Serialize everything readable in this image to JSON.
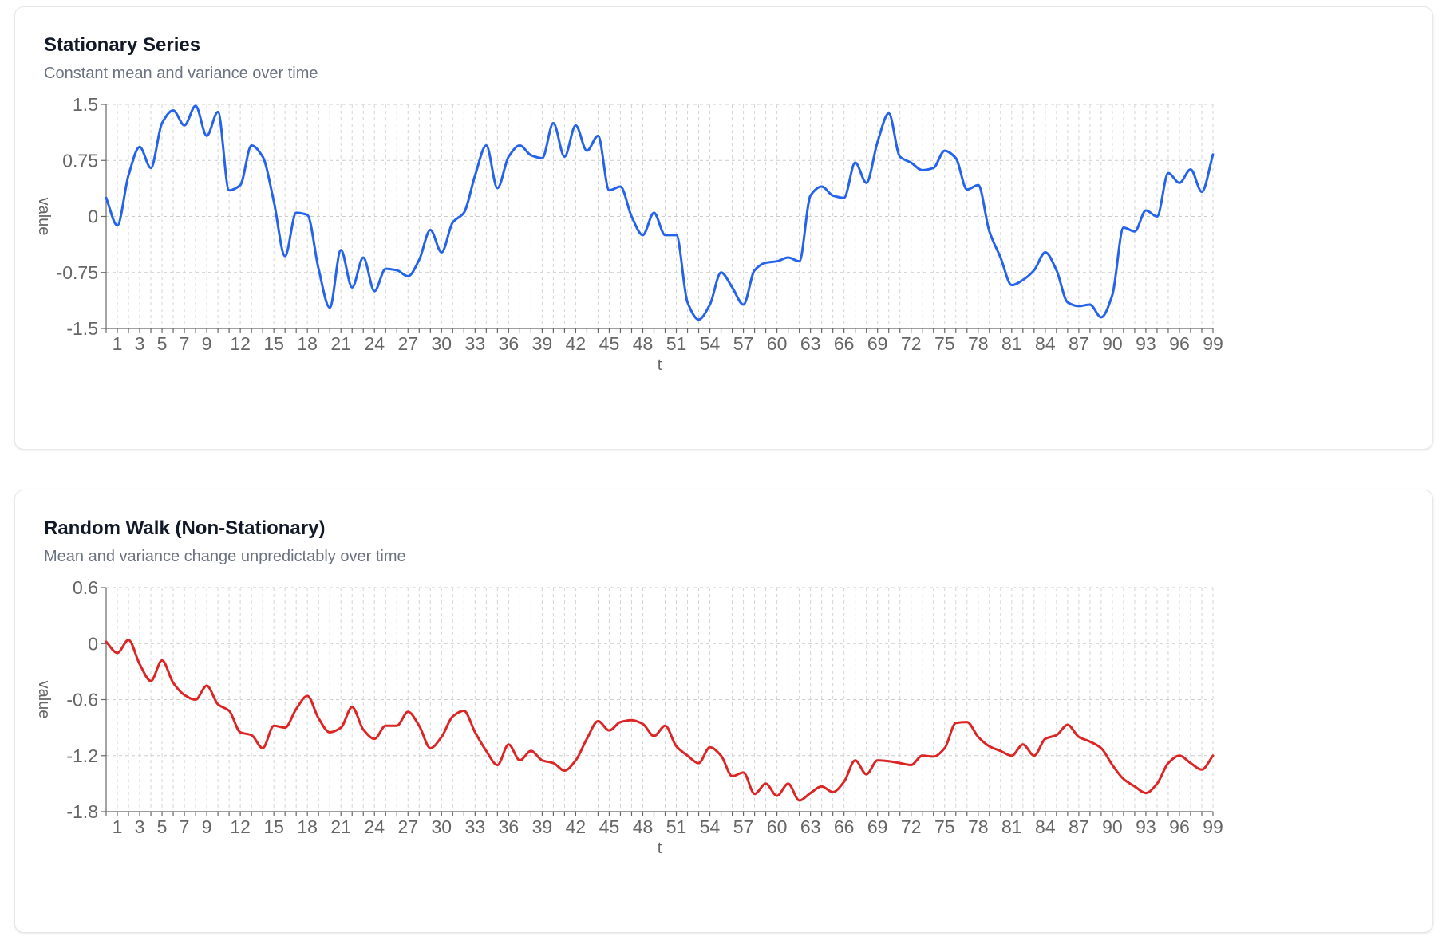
{
  "charts": [
    {
      "title": "Stationary Series",
      "subtitle": "Constant mean and variance over time",
      "chart_data": {
        "type": "line",
        "title": "Stationary Series",
        "subtitle": "Constant mean and variance over time",
        "xlabel": "t",
        "ylabel": "value",
        "ylim": [
          -1.5,
          1.5
        ],
        "yticks": [
          1.5,
          0.75,
          0,
          -0.75,
          -1.5
        ],
        "ytick_labels": [
          "1.5",
          "0.75",
          "0",
          "-0.75",
          "-1.5"
        ],
        "xtick_labels": [
          1,
          3,
          5,
          7,
          9,
          12,
          15,
          18,
          21,
          24,
          27,
          30,
          33,
          36,
          39,
          42,
          45,
          48,
          51,
          54,
          57,
          60,
          63,
          66,
          69,
          72,
          75,
          78,
          81,
          84,
          87,
          90,
          93,
          96,
          99
        ],
        "grid": true,
        "color": "#2563eb",
        "x": [
          0,
          1,
          2,
          3,
          4,
          5,
          6,
          7,
          8,
          9,
          10,
          11,
          12,
          13,
          14,
          15,
          16,
          17,
          18,
          19,
          20,
          21,
          22,
          23,
          24,
          25,
          26,
          27,
          28,
          29,
          30,
          31,
          32,
          33,
          34,
          35,
          36,
          37,
          38,
          39,
          40,
          41,
          42,
          43,
          44,
          45,
          46,
          47,
          48,
          49,
          50,
          51,
          52,
          53,
          54,
          55,
          56,
          57,
          58,
          59,
          60,
          61,
          62,
          63,
          64,
          65,
          66,
          67,
          68,
          69,
          70,
          71,
          72,
          73,
          74,
          75,
          76,
          77,
          78,
          79,
          80,
          81,
          82,
          83,
          84,
          85,
          86,
          87,
          88,
          89,
          90,
          91,
          92,
          93,
          94,
          95,
          96,
          97,
          98,
          99
        ],
        "series": [
          {
            "values": [
              0.25,
              -0.12,
              0.55,
              0.93,
              0.65,
              1.25,
              1.42,
              1.22,
              1.48,
              1.08,
              1.4,
              0.35,
              0.42,
              0.95,
              0.8,
              0.2,
              -0.53,
              0.05,
              0.02,
              -0.7,
              -1.22,
              -0.45,
              -0.95,
              -0.55,
              -1.0,
              -0.7,
              -0.72,
              -0.8,
              -0.58,
              -0.18,
              -0.48,
              -0.08,
              0.05,
              0.55,
              0.95,
              0.38,
              0.8,
              0.95,
              0.82,
              0.78,
              1.25,
              0.8,
              1.22,
              0.88,
              1.08,
              0.35,
              0.4,
              0.0,
              -0.25,
              0.05,
              -0.25,
              -0.25,
              -1.15,
              -1.38,
              -1.18,
              -0.75,
              -0.95,
              -1.18,
              -0.72,
              -0.62,
              -0.6,
              -0.55,
              -0.6,
              0.28,
              0.4,
              0.28,
              0.25,
              0.72,
              0.45,
              1.0,
              1.38,
              0.8,
              0.72,
              0.62,
              0.65,
              0.88,
              0.78,
              0.36,
              0.42,
              -0.2,
              -0.55,
              -0.92,
              -0.85,
              -0.72,
              -0.48,
              -0.72,
              -1.15,
              -1.2,
              -1.18,
              -1.35,
              -1.05,
              -0.15,
              -0.2,
              0.08,
              0.0,
              0.58,
              0.45,
              0.63,
              0.33,
              0.83
            ]
          }
        ]
      }
    },
    {
      "title": "Random Walk (Non-Stationary)",
      "subtitle": "Mean and variance change unpredictably over time",
      "chart_data": {
        "type": "line",
        "title": "Random Walk (Non-Stationary)",
        "subtitle": "Mean and variance change unpredictably over time",
        "xlabel": "t",
        "ylabel": "value",
        "ylim": [
          -1.8,
          0.6
        ],
        "yticks": [
          0.6,
          0,
          -0.6,
          -1.2,
          -1.8
        ],
        "ytick_labels": [
          "0.6",
          "0",
          "-0.6",
          "-1.2",
          "-1.8"
        ],
        "xtick_labels": [
          1,
          3,
          5,
          7,
          9,
          12,
          15,
          18,
          21,
          24,
          27,
          30,
          33,
          36,
          39,
          42,
          45,
          48,
          51,
          54,
          57,
          60,
          63,
          66,
          69,
          72,
          75,
          78,
          81,
          84,
          87,
          90,
          93,
          96,
          99
        ],
        "grid": true,
        "color": "#dc2626",
        "x": [
          0,
          1,
          2,
          3,
          4,
          5,
          6,
          7,
          8,
          9,
          10,
          11,
          12,
          13,
          14,
          15,
          16,
          17,
          18,
          19,
          20,
          21,
          22,
          23,
          24,
          25,
          26,
          27,
          28,
          29,
          30,
          31,
          32,
          33,
          34,
          35,
          36,
          37,
          38,
          39,
          40,
          41,
          42,
          43,
          44,
          45,
          46,
          47,
          48,
          49,
          50,
          51,
          52,
          53,
          54,
          55,
          56,
          57,
          58,
          59,
          60,
          61,
          62,
          63,
          64,
          65,
          66,
          67,
          68,
          69,
          70,
          71,
          72,
          73,
          74,
          75,
          76,
          77,
          78,
          79,
          80,
          81,
          82,
          83,
          84,
          85,
          86,
          87,
          88,
          89,
          90,
          91,
          92,
          93,
          94,
          95,
          96,
          97,
          98,
          99
        ],
        "series": [
          {
            "values": [
              0.02,
              -0.1,
              0.04,
              -0.22,
              -0.4,
              -0.18,
              -0.42,
              -0.55,
              -0.6,
              -0.45,
              -0.65,
              -0.72,
              -0.95,
              -0.98,
              -1.12,
              -0.88,
              -0.9,
              -0.7,
              -0.56,
              -0.8,
              -0.95,
              -0.9,
              -0.68,
              -0.92,
              -1.02,
              -0.88,
              -0.88,
              -0.73,
              -0.88,
              -1.12,
              -1.0,
              -0.78,
              -0.72,
              -0.95,
              -1.15,
              -1.3,
              -1.08,
              -1.25,
              -1.15,
              -1.25,
              -1.28,
              -1.36,
              -1.25,
              -1.02,
              -0.83,
              -0.93,
              -0.84,
              -0.82,
              -0.86,
              -0.99,
              -0.88,
              -1.1,
              -1.2,
              -1.28,
              -1.11,
              -1.2,
              -1.42,
              -1.38,
              -1.61,
              -1.5,
              -1.63,
              -1.5,
              -1.68,
              -1.6,
              -1.53,
              -1.59,
              -1.48,
              -1.25,
              -1.4,
              -1.25,
              -1.26,
              -1.28,
              -1.3,
              -1.2,
              -1.21,
              -1.12,
              -0.85,
              -0.84,
              -1.0,
              -1.1,
              -1.15,
              -1.2,
              -1.08,
              -1.2,
              -1.02,
              -0.98,
              -0.87,
              -1.0,
              -1.05,
              -1.12,
              -1.3,
              -1.45,
              -1.53,
              -1.6,
              -1.5,
              -1.28,
              -1.2,
              -1.28,
              -1.35,
              -1.2
            ]
          }
        ]
      }
    }
  ]
}
